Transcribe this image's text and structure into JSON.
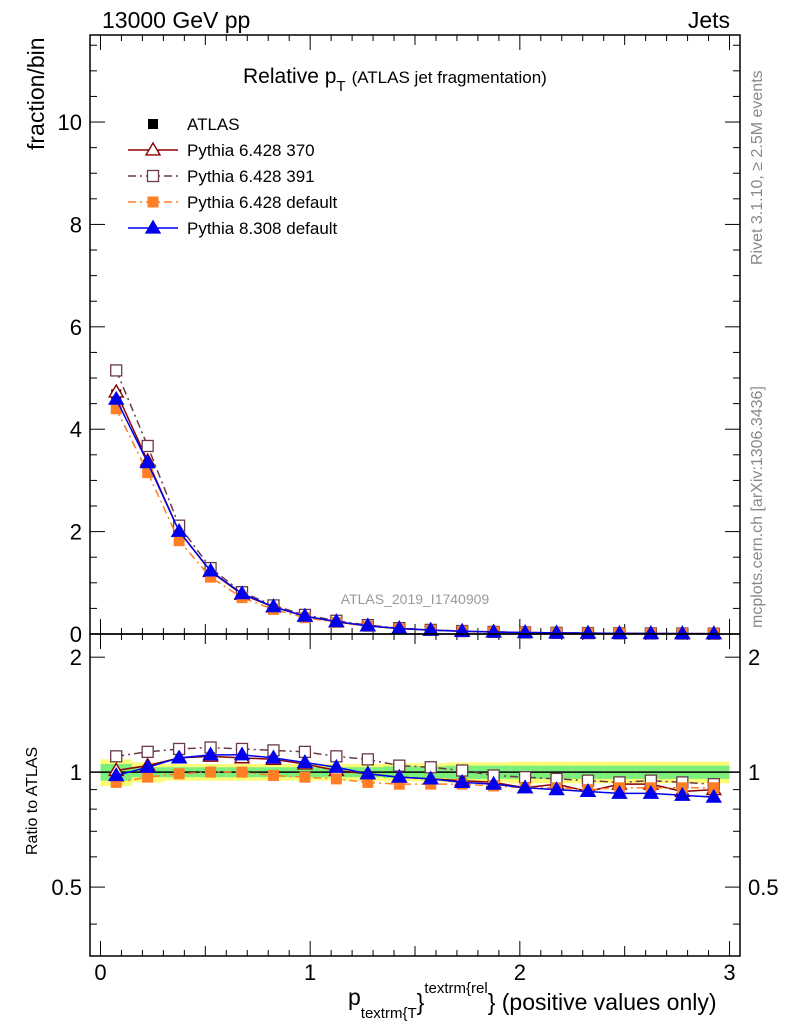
{
  "header": {
    "left": "13000 GeV pp",
    "right": "Jets"
  },
  "side_labels": {
    "rivet": "Rivet 3.1.10, ≥ 2.5M events",
    "source": "mcplots.cern.ch [arXiv:1306.3436]"
  },
  "chart_data": {
    "type": "line",
    "title_main": "Relative p",
    "title_sub": "T",
    "title_note": "(ATLAS jet fragmentation)",
    "watermark": "ATLAS_2019_I1740909",
    "ylabel_top": "fraction/bin",
    "ylabel_bottom": "Ratio to ATLAS",
    "xlabel": {
      "p": "p",
      "sub": "textrm{T",
      "sup": "textrm{rel",
      "close": "}",
      "rest": "} (positive values only)"
    },
    "xlim": [
      -0.05,
      3.05
    ],
    "top_ylim": [
      0,
      11.7
    ],
    "top_yticks": [
      "0",
      "2",
      "4",
      "6",
      "8",
      "10"
    ],
    "bottom_ylim": [
      0.33,
      2.3
    ],
    "bottom_yticks": [
      "0.5",
      "1",
      "2"
    ],
    "xticks": [
      "0",
      "1",
      "2",
      "3"
    ],
    "x": [
      0.075,
      0.225,
      0.375,
      0.525,
      0.675,
      0.825,
      0.975,
      1.125,
      1.275,
      1.425,
      1.575,
      1.725,
      1.875,
      2.025,
      2.175,
      2.325,
      2.475,
      2.625,
      2.775,
      2.925
    ],
    "data": {
      "name": "ATLAS",
      "values": [
        4.68,
        3.25,
        1.84,
        1.11,
        0.71,
        0.49,
        0.33,
        0.235,
        0.16,
        0.11,
        0.078,
        0.057,
        0.042,
        0.031,
        0.024,
        0.018,
        0.014,
        0.011,
        0.009,
        0.007
      ],
      "err_green": [
        0.05,
        0.03,
        0.03,
        0.03,
        0.03,
        0.03,
        0.03,
        0.03,
        0.03,
        0.035,
        0.035,
        0.04,
        0.04,
        0.04,
        0.04,
        0.04,
        0.04,
        0.04,
        0.04,
        0.04
      ],
      "err_yellow": [
        0.08,
        0.06,
        0.05,
        0.05,
        0.05,
        0.05,
        0.05,
        0.05,
        0.05,
        0.055,
        0.055,
        0.06,
        0.06,
        0.065,
        0.065,
        0.065,
        0.065,
        0.065,
        0.065,
        0.065
      ]
    },
    "series": [
      {
        "name": "Pythia 6.428 370",
        "color": "#8b0000",
        "dash": "solid",
        "marker": "triangle-open",
        "ratio": [
          1.01,
          1.04,
          1.09,
          1.1,
          1.09,
          1.08,
          1.05,
          1.01,
          0.99,
          0.97,
          0.96,
          0.95,
          0.94,
          0.91,
          0.93,
          0.89,
          0.93,
          0.93,
          0.89,
          0.9
        ]
      },
      {
        "name": "Pythia 6.428 391",
        "color": "#6b3a4a",
        "dash": "dashdot",
        "marker": "square-open",
        "ratio": [
          1.1,
          1.13,
          1.15,
          1.16,
          1.15,
          1.14,
          1.13,
          1.1,
          1.08,
          1.04,
          1.03,
          1.01,
          0.98,
          0.97,
          0.96,
          0.95,
          0.94,
          0.95,
          0.94,
          0.93
        ]
      },
      {
        "name": "Pythia 6.428 default",
        "color": "#ff7f27",
        "dash": "dashdot",
        "marker": "square-filled",
        "ratio": [
          0.94,
          0.97,
          0.99,
          1.0,
          1.0,
          0.98,
          0.97,
          0.96,
          0.94,
          0.93,
          0.93,
          0.93,
          0.92,
          0.91,
          0.91,
          0.9,
          0.91,
          0.91,
          0.91,
          0.91
        ]
      },
      {
        "name": "Pythia 8.308 default",
        "color": "#0000ee",
        "dash": "solid",
        "marker": "triangle-filled",
        "ratio": [
          0.98,
          1.03,
          1.09,
          1.11,
          1.11,
          1.09,
          1.06,
          1.03,
          0.99,
          0.97,
          0.96,
          0.94,
          0.93,
          0.91,
          0.9,
          0.89,
          0.88,
          0.88,
          0.87,
          0.86
        ]
      }
    ]
  }
}
